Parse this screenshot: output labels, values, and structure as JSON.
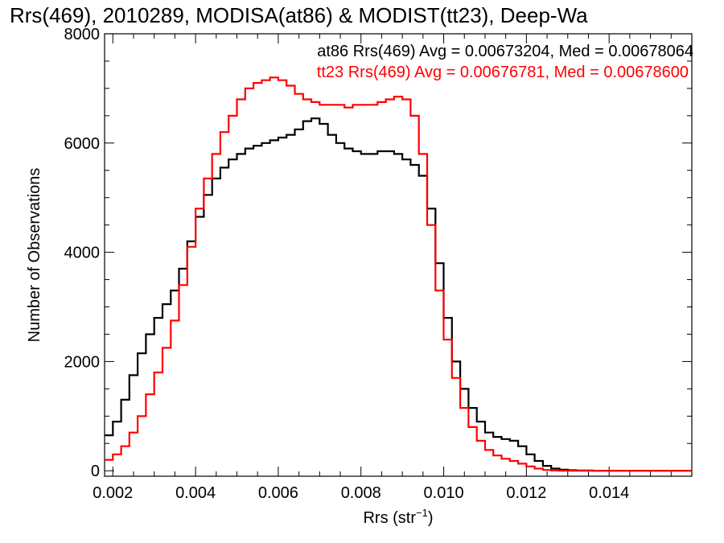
{
  "chart_data": {
    "type": "line",
    "title": "Rrs(469), 2010289, MODISA(at86) & MODIST(tt23), Deep-Wa",
    "xlabel": "Rrs (str",
    "xlabel_sup": "−1",
    "xlabel_close": ")",
    "ylabel": "Number of Observations",
    "xlim": [
      0.0018,
      0.016
    ],
    "ylim": [
      -100,
      8000
    ],
    "xticks": [
      0.002,
      0.004,
      0.006,
      0.008,
      0.01,
      0.012,
      0.014
    ],
    "xtick_labels": [
      "0.002",
      "0.004",
      "0.006",
      "0.008",
      "0.010",
      "0.012",
      "0.014"
    ],
    "yticks": [
      0,
      2000,
      4000,
      6000,
      8000
    ],
    "ytick_labels": [
      "0",
      "2000",
      "4000",
      "6000",
      "8000"
    ],
    "grid": false,
    "legend_position": "top-right",
    "series": [
      {
        "name": "at86 Rrs(469) Avg = 0.00673204, Med = 0.00678064",
        "color": "#000000",
        "x": [
          0.0018,
          0.002,
          0.0022,
          0.0024,
          0.0026,
          0.0028,
          0.003,
          0.0032,
          0.0034,
          0.0036,
          0.0038,
          0.004,
          0.0042,
          0.0044,
          0.0046,
          0.0048,
          0.005,
          0.0052,
          0.0054,
          0.0056,
          0.0058,
          0.006,
          0.0062,
          0.0064,
          0.0066,
          0.0068,
          0.007,
          0.0072,
          0.0074,
          0.0076,
          0.0078,
          0.008,
          0.0082,
          0.0084,
          0.0086,
          0.0088,
          0.009,
          0.0092,
          0.0094,
          0.0096,
          0.0098,
          0.01,
          0.0102,
          0.0104,
          0.0106,
          0.0108,
          0.011,
          0.0112,
          0.0114,
          0.0116,
          0.0118,
          0.012,
          0.0122,
          0.0124,
          0.0126,
          0.0128,
          0.013,
          0.0132,
          0.0136,
          0.014,
          0.015,
          0.016
        ],
        "values": [
          650,
          900,
          1300,
          1750,
          2150,
          2500,
          2800,
          3050,
          3300,
          3700,
          4200,
          4650,
          5050,
          5350,
          5550,
          5700,
          5800,
          5900,
          5950,
          6000,
          6050,
          6100,
          6150,
          6250,
          6400,
          6450,
          6350,
          6150,
          6000,
          5900,
          5850,
          5800,
          5800,
          5850,
          5850,
          5800,
          5700,
          5600,
          5400,
          4800,
          3800,
          2800,
          2000,
          1500,
          1150,
          900,
          700,
          620,
          580,
          550,
          450,
          300,
          180,
          90,
          40,
          20,
          10,
          5,
          2,
          0,
          0,
          0
        ]
      },
      {
        "name": "tt23 Rrs(469) Avg = 0.00676781, Med = 0.00678600",
        "color": "#ff0000",
        "x": [
          0.0018,
          0.002,
          0.0022,
          0.0024,
          0.0026,
          0.0028,
          0.003,
          0.0032,
          0.0034,
          0.0036,
          0.0038,
          0.004,
          0.0042,
          0.0044,
          0.0046,
          0.0048,
          0.005,
          0.0052,
          0.0054,
          0.0056,
          0.0058,
          0.006,
          0.0062,
          0.0064,
          0.0066,
          0.0068,
          0.007,
          0.0072,
          0.0074,
          0.0076,
          0.0078,
          0.008,
          0.0082,
          0.0084,
          0.0086,
          0.0088,
          0.009,
          0.0092,
          0.0094,
          0.0096,
          0.0098,
          0.01,
          0.0102,
          0.0104,
          0.0106,
          0.0108,
          0.011,
          0.0112,
          0.0114,
          0.0116,
          0.0118,
          0.012,
          0.0122,
          0.0124,
          0.0126,
          0.0128,
          0.013,
          0.0132,
          0.0136,
          0.014,
          0.015,
          0.016
        ],
        "values": [
          200,
          300,
          450,
          700,
          1000,
          1400,
          1800,
          2250,
          2750,
          3400,
          4100,
          4800,
          5350,
          5800,
          6200,
          6500,
          6800,
          7000,
          7100,
          7150,
          7200,
          7150,
          7050,
          6900,
          6800,
          6750,
          6700,
          6700,
          6700,
          6650,
          6700,
          6700,
          6700,
          6750,
          6800,
          6850,
          6800,
          6500,
          5800,
          4500,
          3300,
          2400,
          1700,
          1150,
          800,
          550,
          380,
          280,
          220,
          180,
          130,
          80,
          40,
          15,
          5,
          2,
          0,
          0,
          0,
          0,
          0,
          0
        ]
      }
    ]
  }
}
